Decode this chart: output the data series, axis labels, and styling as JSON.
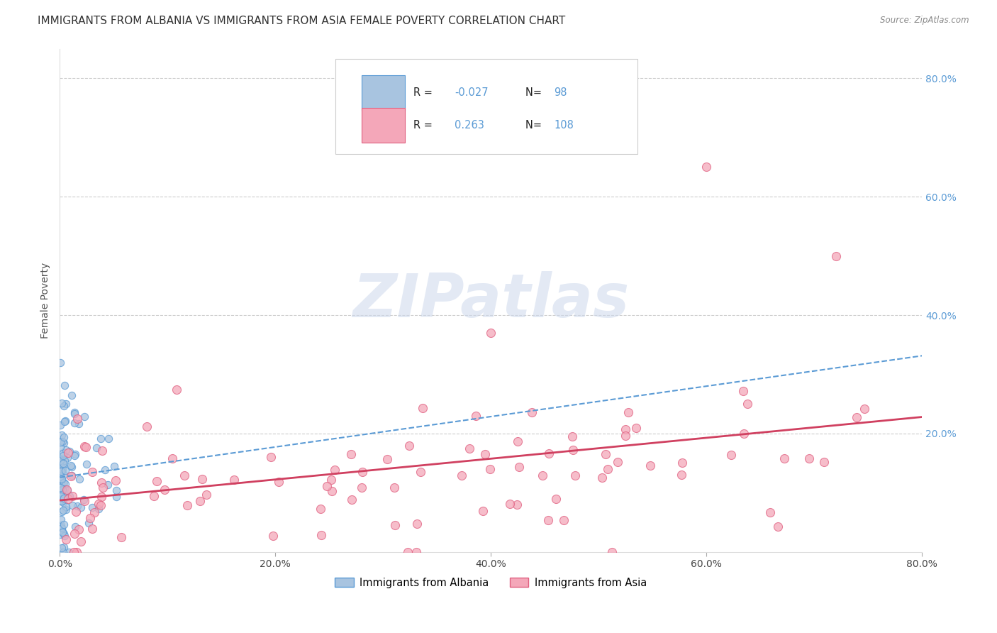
{
  "title": "IMMIGRANTS FROM ALBANIA VS IMMIGRANTS FROM ASIA FEMALE POVERTY CORRELATION CHART",
  "source": "Source: ZipAtlas.com",
  "ylabel": "Female Poverty",
  "xmin": 0.0,
  "xmax": 0.8,
  "ymin": 0.0,
  "ymax": 0.85,
  "y_ticks": [
    0.2,
    0.4,
    0.6,
    0.8
  ],
  "y_tick_labels": [
    "20.0%",
    "40.0%",
    "60.0%",
    "80.0%"
  ],
  "x_ticks": [
    0.0,
    0.2,
    0.4,
    0.6,
    0.8
  ],
  "x_tick_labels": [
    "0.0%",
    "20.0%",
    "40.0%",
    "60.0%",
    "80.0%"
  ],
  "albania_face_color": "#a8c4e0",
  "albania_edge_color": "#5b9bd5",
  "asia_face_color": "#f4a7b9",
  "asia_edge_color": "#e06080",
  "albania_line_color": "#5b9bd5",
  "asia_line_color": "#d04060",
  "legend_R_albania": "-0.027",
  "legend_N_albania": "98",
  "legend_R_asia": "0.263",
  "legend_N_asia": "108",
  "watermark": "ZIPatlas",
  "background_color": "#ffffff",
  "grid_color": "#cccccc",
  "title_fontsize": 11,
  "axis_label_fontsize": 10,
  "tick_label_fontsize": 10,
  "right_tick_color": "#5b9bd5",
  "albania_label": "Immigrants from Albania",
  "asia_label": "Immigrants from Asia"
}
